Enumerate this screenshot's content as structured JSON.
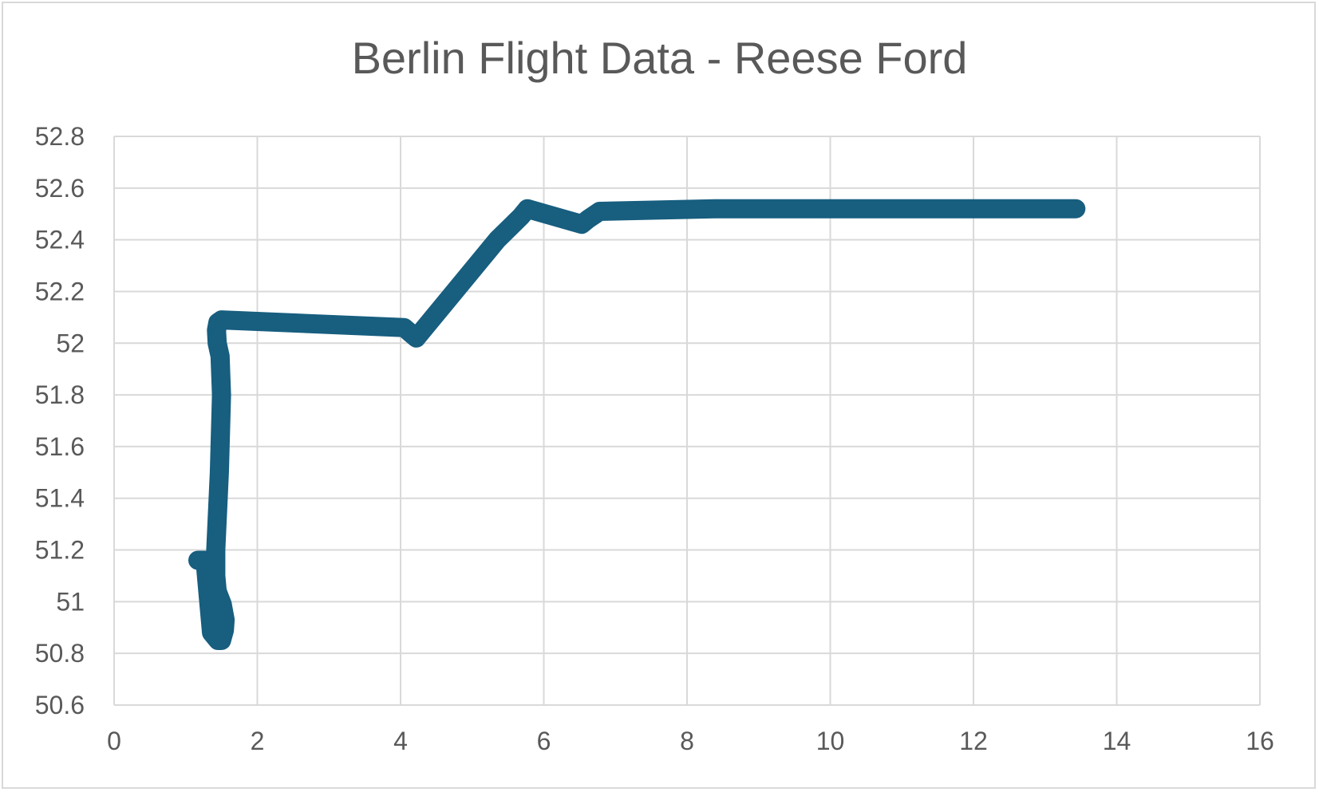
{
  "colors": {
    "series": "#175e7f",
    "grid": "#d9d9d9",
    "text": "#595959"
  },
  "chart_data": {
    "type": "line",
    "title": "Berlin Flight Data - Reese Ford",
    "xlabel": "",
    "ylabel": "",
    "xlim": [
      0,
      16
    ],
    "ylim": [
      50.6,
      52.8
    ],
    "x_ticks": [
      0,
      2,
      4,
      6,
      8,
      10,
      12,
      14,
      16
    ],
    "y_ticks": [
      50.6,
      50.8,
      51,
      51.2,
      51.4,
      51.6,
      51.8,
      52,
      52.2,
      52.4,
      52.6,
      52.8
    ],
    "x_tick_labels": [
      "0",
      "2",
      "4",
      "6",
      "8",
      "10",
      "12",
      "14",
      "16"
    ],
    "y_tick_labels": [
      "50.6",
      "50.8",
      "51",
      "51.2",
      "51.4",
      "51.6",
      "51.8",
      "52",
      "52.2",
      "52.4",
      "52.6",
      "52.8"
    ],
    "grid": true,
    "legend": "none",
    "series": [
      {
        "x": [
          1.17,
          1.27,
          1.36,
          1.45,
          1.5,
          1.54,
          1.55,
          1.51,
          1.44,
          1.42,
          1.42,
          1.47,
          1.5,
          1.48,
          1.44,
          1.43,
          1.45,
          1.5,
          4.05,
          4.22,
          5.35,
          5.68,
          5.77,
          6.53,
          6.62,
          6.78,
          8.4,
          13.43
        ],
        "y": [
          51.16,
          51.16,
          50.88,
          50.85,
          50.85,
          50.89,
          50.93,
          50.99,
          51.04,
          51.1,
          51.2,
          51.5,
          51.8,
          51.95,
          52.0,
          52.05,
          52.08,
          52.09,
          52.06,
          52.02,
          52.4,
          52.49,
          52.52,
          52.46,
          52.48,
          52.51,
          52.52,
          52.52
        ]
      }
    ]
  }
}
